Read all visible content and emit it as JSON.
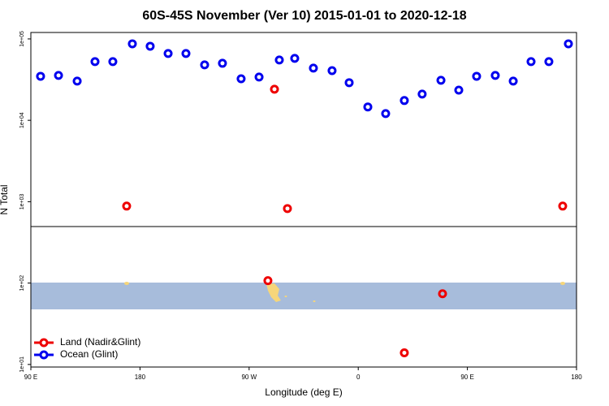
{
  "chart_data": {
    "type": "scatter",
    "title": "60S-45S November (Ver 10)   2015-01-01 to 2020-12-18",
    "xlabel": "Longitude (deg E)",
    "ylabel": "N Total",
    "ylog": true,
    "xlim": [
      90,
      540
    ],
    "ylim": [
      9.3,
      120000
    ],
    "xticks": [
      {
        "value": 90,
        "label": "90 E"
      },
      {
        "value": 180,
        "label": "180"
      },
      {
        "value": 270,
        "label": "90 W"
      },
      {
        "value": 360,
        "label": "0"
      },
      {
        "value": 450,
        "label": "90 E"
      },
      {
        "value": 540,
        "label": "180"
      }
    ],
    "yticks": [
      {
        "value": 10,
        "label": "1e+01"
      },
      {
        "value": 100,
        "label": "1e+02"
      },
      {
        "value": 1000,
        "label": "1e+03"
      },
      {
        "value": 10000,
        "label": "1e+04"
      },
      {
        "value": 100000,
        "label": "1e+05"
      }
    ],
    "legend": "bottom-left",
    "series": [
      {
        "name": "Land (Nadir&Glint)",
        "color": "#ee0000",
        "x": [
          169.0,
          290.9,
          301.6,
          285.5,
          429.5,
          398.0,
          528.6
        ],
        "values": [
          883,
          24100,
          824,
          107,
          74,
          13.9,
          883
        ]
      },
      {
        "name": "Ocean (Glint)",
        "color": "#0000ee",
        "x": [
          98.0,
          112.8,
          128.2,
          142.9,
          157.6,
          173.7,
          188.4,
          203.2,
          217.9,
          233.3,
          248.0,
          263.4,
          278.2,
          294.9,
          307.6,
          323.0,
          338.4,
          352.5,
          367.9,
          382.6,
          398.0,
          412.7,
          428.2,
          442.9,
          457.6,
          473.0,
          487.8,
          502.5,
          517.2,
          533.3
        ],
        "values": [
          34750,
          35600,
          30300,
          52600,
          52600,
          87100,
          81300,
          66200,
          66200,
          48000,
          50200,
          32400,
          34000,
          55100,
          57700,
          43800,
          40800,
          29000,
          14600,
          12100,
          17500,
          21000,
          31000,
          23500,
          34750,
          35600,
          30300,
          52600,
          52600,
          87100
        ]
      }
    ]
  }
}
